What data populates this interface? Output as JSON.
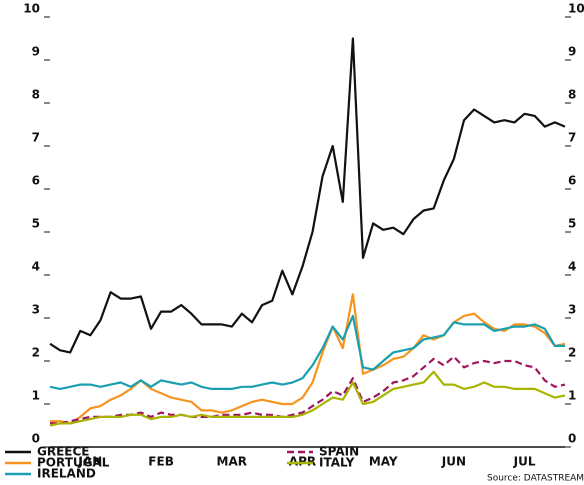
{
  "chart_data": {
    "type": "line",
    "categories": [
      null,
      null,
      null,
      null,
      "JAN",
      null,
      null,
      null,
      null,
      null,
      null,
      "FEB",
      null,
      null,
      null,
      null,
      null,
      null,
      "MAR",
      null,
      null,
      null,
      null,
      null,
      null,
      "APR",
      null,
      null,
      null,
      null,
      null,
      null,
      null,
      "MAY",
      null,
      null,
      null,
      null,
      null,
      null,
      "JUN",
      null,
      null,
      null,
      null,
      null,
      null,
      "JUL",
      null,
      null,
      null,
      null
    ],
    "series": [
      {
        "name": "GREECE",
        "color": "#111111",
        "values": [
          2.4,
          2.25,
          2.2,
          2.7,
          2.6,
          2.95,
          3.6,
          3.45,
          3.45,
          3.5,
          2.75,
          3.15,
          3.15,
          3.3,
          3.1,
          2.85,
          2.85,
          2.85,
          2.8,
          3.1,
          2.9,
          3.3,
          3.4,
          4.1,
          3.55,
          4.2,
          5.0,
          6.3,
          7.0,
          5.7,
          9.5,
          4.4,
          5.2,
          5.05,
          5.1,
          4.95,
          5.3,
          5.5,
          5.55,
          6.2,
          6.7,
          7.6,
          7.85,
          7.7,
          7.55,
          7.6,
          7.55,
          7.75,
          7.7,
          7.45,
          7.55,
          7.45
        ]
      },
      {
        "name": "PORTUGAL",
        "color": "#f7941d",
        "values": [
          0.6,
          0.6,
          0.55,
          0.7,
          0.9,
          0.95,
          1.1,
          1.2,
          1.35,
          1.55,
          1.35,
          1.25,
          1.15,
          1.1,
          1.05,
          0.85,
          0.85,
          0.8,
          0.85,
          0.95,
          1.05,
          1.1,
          1.05,
          1.0,
          1.0,
          1.15,
          1.5,
          2.2,
          2.8,
          2.3,
          3.55,
          1.7,
          1.8,
          1.9,
          2.05,
          2.1,
          2.3,
          2.6,
          2.5,
          2.6,
          2.9,
          3.05,
          3.1,
          2.9,
          2.75,
          2.7,
          2.85,
          2.85,
          2.8,
          2.65,
          2.35,
          2.4
        ]
      },
      {
        "name": "IRELAND",
        "color": "#1a9fb0",
        "values": [
          1.4,
          1.35,
          1.4,
          1.45,
          1.45,
          1.4,
          1.45,
          1.5,
          1.4,
          1.55,
          1.4,
          1.55,
          1.5,
          1.45,
          1.5,
          1.4,
          1.35,
          1.35,
          1.35,
          1.4,
          1.4,
          1.45,
          1.5,
          1.45,
          1.5,
          1.6,
          1.9,
          2.3,
          2.8,
          2.5,
          3.05,
          1.85,
          1.8,
          2.0,
          2.2,
          2.25,
          2.3,
          2.5,
          2.55,
          2.6,
          2.9,
          2.85,
          2.85,
          2.85,
          2.7,
          2.75,
          2.8,
          2.8,
          2.85,
          2.75,
          2.35,
          2.35
        ]
      },
      {
        "name": "SPAIN",
        "color": "#a0155f",
        "dashed": true,
        "values": [
          0.55,
          0.55,
          0.6,
          0.65,
          0.7,
          0.7,
          0.7,
          0.75,
          0.75,
          0.8,
          0.7,
          0.8,
          0.75,
          0.75,
          0.7,
          0.7,
          0.7,
          0.75,
          0.75,
          0.75,
          0.8,
          0.75,
          0.75,
          0.7,
          0.75,
          0.8,
          0.95,
          1.1,
          1.3,
          1.2,
          1.6,
          1.05,
          1.15,
          1.3,
          1.5,
          1.55,
          1.65,
          1.85,
          2.05,
          1.9,
          2.1,
          1.85,
          1.95,
          2.0,
          1.95,
          2.0,
          2.0,
          1.9,
          1.85,
          1.55,
          1.4,
          1.45
        ]
      },
      {
        "name": "ITALY",
        "color": "#a8b400",
        "values": [
          0.5,
          0.55,
          0.55,
          0.6,
          0.65,
          0.7,
          0.7,
          0.7,
          0.75,
          0.75,
          0.65,
          0.7,
          0.7,
          0.75,
          0.7,
          0.75,
          0.7,
          0.7,
          0.7,
          0.7,
          0.7,
          0.7,
          0.7,
          0.7,
          0.7,
          0.75,
          0.85,
          1.0,
          1.15,
          1.1,
          1.5,
          1.0,
          1.05,
          1.2,
          1.35,
          1.4,
          1.45,
          1.5,
          1.75,
          1.45,
          1.45,
          1.35,
          1.4,
          1.5,
          1.4,
          1.4,
          1.35,
          1.35,
          1.35,
          1.25,
          1.15,
          1.2
        ]
      }
    ],
    "ylim": [
      0,
      10
    ],
    "yticks": [
      0,
      1,
      2,
      3,
      4,
      5,
      6,
      7,
      8,
      9,
      10
    ],
    "right_axis": true,
    "legend": "lower left",
    "source": "Source: DATASTREAM"
  }
}
